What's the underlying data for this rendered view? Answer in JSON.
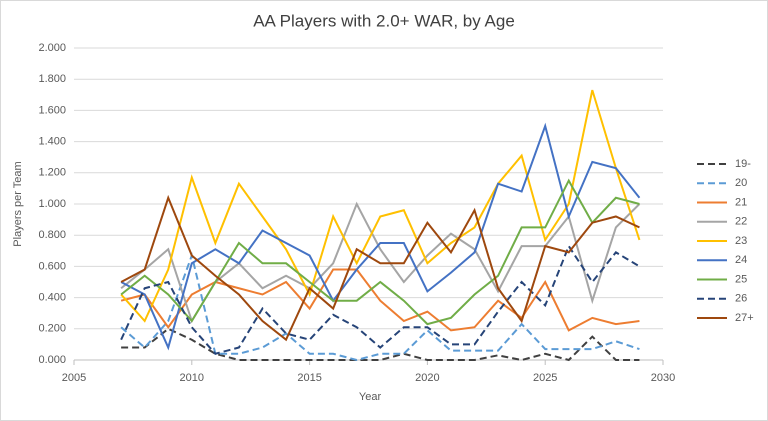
{
  "chart_data": {
    "type": "line",
    "title": "AA Players with 2.0+ WAR, by Age",
    "x_label": "Year",
    "y_label": "Players per Team",
    "x": [
      2007,
      2008,
      2009,
      2010,
      2011,
      2012,
      2013,
      2014,
      2015,
      2016,
      2017,
      2018,
      2019,
      2020,
      2021,
      2022,
      2023,
      2024,
      2025,
      2026,
      2027,
      2028,
      2029
    ],
    "xlim": [
      2005,
      2030
    ],
    "xticks": [
      2005,
      2010,
      2015,
      2020,
      2025,
      2030
    ],
    "ylim": [
      0,
      2
    ],
    "yticks": [
      {
        "value": 0,
        "label": "0.000"
      },
      {
        "value": 0.2,
        "label": "0.200"
      },
      {
        "value": 0.4,
        "label": "0.400"
      },
      {
        "value": 0.6,
        "label": "0.600"
      },
      {
        "value": 0.8,
        "label": "0.800"
      },
      {
        "value": 1.0,
        "label": "1.000"
      },
      {
        "value": 1.2,
        "label": "1.200"
      },
      {
        "value": 1.4,
        "label": "1.400"
      },
      {
        "value": 1.6,
        "label": "1.600"
      },
      {
        "value": 1.8,
        "label": "1.800"
      },
      {
        "value": 2.0,
        "label": "2.000"
      }
    ],
    "grid": true,
    "legend": "right",
    "series": [
      {
        "name": "19-",
        "color": "#404040",
        "dashed": true,
        "values": [
          0.08,
          0.08,
          0.2,
          0.13,
          0.04,
          0,
          0,
          0,
          0,
          0,
          0,
          0,
          0.04,
          0,
          0,
          0,
          0.03,
          0,
          0.04,
          0,
          0.15,
          0,
          0
        ]
      },
      {
        "name": "20",
        "color": "#5b9bd5",
        "dashed": true,
        "values": [
          0.21,
          0.08,
          0.25,
          0.67,
          0.04,
          0.04,
          0.08,
          0.17,
          0.04,
          0.04,
          0,
          0.04,
          0.04,
          0.19,
          0.06,
          0.06,
          0.06,
          0.23,
          0.07,
          0.07,
          0.07,
          0.12,
          0.07
        ]
      },
      {
        "name": "21",
        "color": "#ed7d31",
        "dashed": false,
        "values": [
          0.38,
          0.42,
          0.21,
          0.42,
          0.5,
          0.46,
          0.42,
          0.5,
          0.33,
          0.58,
          0.58,
          0.38,
          0.25,
          0.31,
          0.19,
          0.21,
          0.38,
          0.27,
          0.5,
          0.19,
          0.27,
          0.23,
          0.25
        ]
      },
      {
        "name": "22",
        "color": "#a5a5a5",
        "dashed": false,
        "values": [
          0.46,
          0.58,
          0.71,
          0.25,
          0.5,
          0.62,
          0.46,
          0.54,
          0.46,
          0.62,
          1.0,
          0.71,
          0.5,
          0.67,
          0.81,
          0.71,
          0.44,
          0.73,
          0.73,
          0.92,
          0.38,
          0.85,
          1.0
        ]
      },
      {
        "name": "23",
        "color": "#ffc000",
        "dashed": false,
        "values": [
          0.42,
          0.25,
          0.58,
          1.17,
          0.75,
          1.13,
          0.92,
          0.71,
          0.42,
          0.92,
          0.62,
          0.92,
          0.96,
          0.62,
          0.75,
          0.85,
          1.13,
          1.31,
          0.77,
          1.0,
          1.73,
          1.23,
          0.77
        ]
      },
      {
        "name": "24",
        "color": "#4472c4",
        "dashed": false,
        "values": [
          0.5,
          0.42,
          0.08,
          0.62,
          0.71,
          0.62,
          0.83,
          0.75,
          0.67,
          0.38,
          0.58,
          0.75,
          0.75,
          0.44,
          0.56,
          0.69,
          1.13,
          1.08,
          1.5,
          0.92,
          1.27,
          1.23,
          1.04
        ]
      },
      {
        "name": "25",
        "color": "#70ad47",
        "dashed": false,
        "values": [
          0.42,
          0.54,
          0.42,
          0.25,
          0.5,
          0.75,
          0.62,
          0.62,
          0.5,
          0.38,
          0.38,
          0.5,
          0.38,
          0.23,
          0.27,
          0.42,
          0.54,
          0.85,
          0.85,
          1.15,
          0.88,
          1.04,
          1.0
        ]
      },
      {
        "name": "26",
        "color": "#264478",
        "dashed": true,
        "values": [
          0.13,
          0.46,
          0.5,
          0.21,
          0.04,
          0.08,
          0.33,
          0.17,
          0.13,
          0.29,
          0.21,
          0.08,
          0.21,
          0.21,
          0.1,
          0.1,
          0.31,
          0.5,
          0.35,
          0.73,
          0.5,
          0.69,
          0.6
        ]
      },
      {
        "name": "27+",
        "color": "#9e480e",
        "dashed": false,
        "values": [
          0.5,
          0.58,
          1.04,
          0.67,
          0.54,
          0.42,
          0.25,
          0.13,
          0.46,
          0.33,
          0.71,
          0.62,
          0.62,
          0.88,
          0.69,
          0.96,
          0.46,
          0.25,
          0.73,
          0.69,
          0.88,
          0.92,
          0.85
        ]
      }
    ]
  }
}
